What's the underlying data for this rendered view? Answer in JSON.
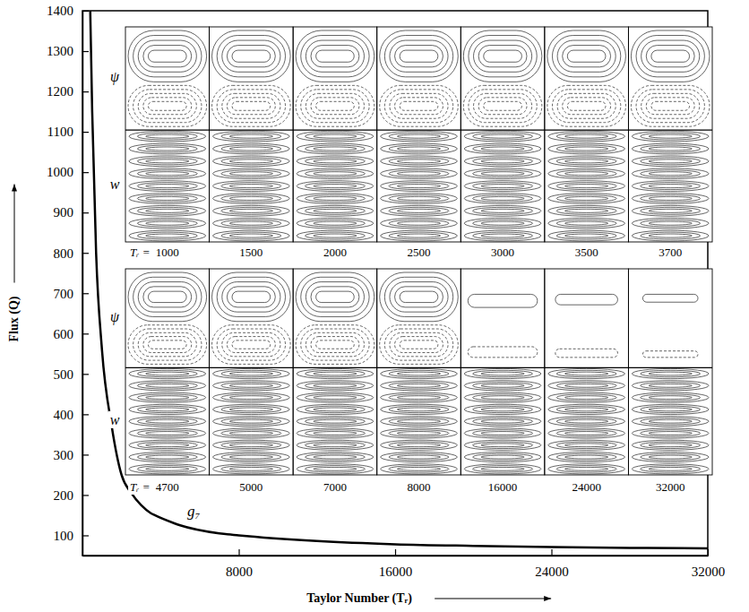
{
  "chart_data": {
    "type": "line",
    "x_label": "Taylor Number (Tᵣ)",
    "y_label": "Flux (Q)",
    "x": [
      400,
      500,
      700,
      1000,
      1500,
      2000,
      2500,
      3000,
      3500,
      3700,
      4700,
      5000,
      7000,
      8000,
      12000,
      16000,
      20000,
      24000,
      28000,
      32000
    ],
    "series": [
      {
        "name": "g₇",
        "color": "#000000",
        "values": [
          1400,
          1150,
          800,
          560,
          370,
          250,
          205,
          175,
          155,
          150,
          130,
          125,
          105,
          100,
          86,
          78,
          74,
          71,
          69,
          68
        ]
      }
    ],
    "xlim": [
      0,
      32000
    ],
    "xticks": [
      8000,
      16000,
      24000,
      32000
    ],
    "ylim": [
      50,
      1400
    ],
    "yticks": [
      100,
      200,
      300,
      400,
      500,
      600,
      700,
      800,
      900,
      1000,
      1100,
      1200,
      1300,
      1400
    ],
    "panels": {
      "labels": [
        "ψ",
        "w"
      ],
      "rows": [
        {
          "prefix": "Tᵣ =",
          "taylor_numbers": [
            1000,
            1500,
            2000,
            2500,
            3000,
            3500,
            3700
          ]
        },
        {
          "prefix": "Tᵣ =",
          "taylor_numbers": [
            4700,
            5000,
            7000,
            8000,
            16000,
            24000,
            32000
          ]
        }
      ]
    }
  }
}
